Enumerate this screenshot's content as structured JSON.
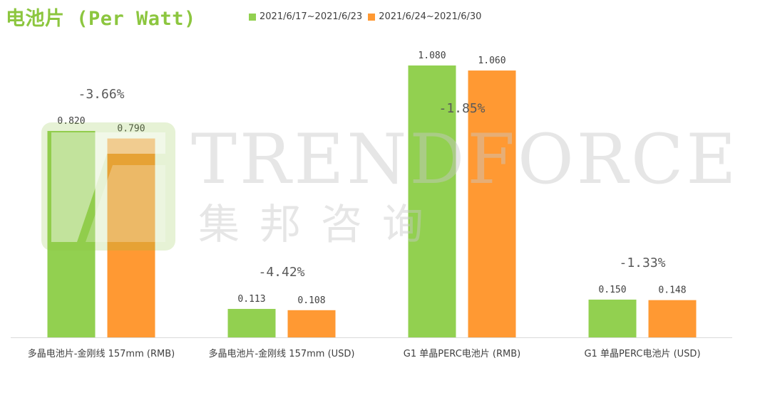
{
  "title": "电池片 (Per Watt)",
  "legend": {
    "series1": "2021/6/17~2021/6/23",
    "series2": "2021/6/24~2021/6/30"
  },
  "watermark": {
    "text": "TRENDFORCE",
    "cn": "集邦咨询"
  },
  "colors": {
    "series1": "#92d050",
    "series2": "#ff9933",
    "accent": "#8cc63f"
  },
  "chart_data": {
    "type": "bar",
    "title": "电池片 (Per Watt)",
    "categories": [
      "多晶电池片-金刚线 157mm (RMB)",
      "多晶电池片-金刚线 157mm (USD)",
      "G1 单晶PERC电池片 (RMB)",
      "G1 单晶PERC电池片  (USD)"
    ],
    "series": [
      {
        "name": "2021/6/17~2021/6/23",
        "values": [
          0.82,
          0.113,
          1.08,
          0.15
        ],
        "labels": [
          "0.820",
          "0.113",
          "1.080",
          "0.150"
        ]
      },
      {
        "name": "2021/6/24~2021/6/30",
        "values": [
          0.79,
          0.108,
          1.06,
          0.148
        ],
        "labels": [
          "0.790",
          "0.108",
          "1.060",
          "0.148"
        ]
      }
    ],
    "changes": [
      "-3.66%",
      "-4.42%",
      "-1.85%",
      "-1.33%"
    ],
    "legend": "top",
    "grid": false
  }
}
